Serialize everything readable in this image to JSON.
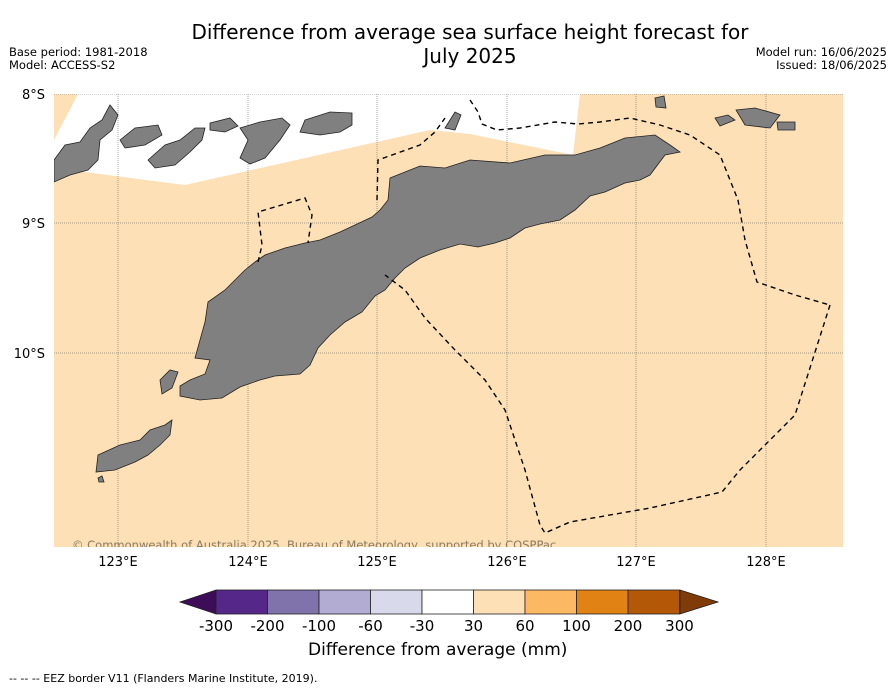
{
  "title_line1": "Difference from average sea surface height forecast for",
  "title_line2": "July 2025",
  "meta_left": [
    "Base period: 1981-2018",
    "Model: ACCESS-S2"
  ],
  "meta_right": [
    "Model run: 16/06/2025",
    "Issued: 18/06/2025"
  ],
  "map": {
    "lat_labels": [
      "8°S",
      "9°S",
      "10°S"
    ],
    "lon_labels": [
      "123°E",
      "124°E",
      "125°E",
      "126°E",
      "127°E",
      "128°E"
    ],
    "copyright": "© Commonwealth of Australia 2025, Bureau of Meteorology, supported by COSPPac",
    "background_anomaly_class": "30 to 60",
    "colors": {
      "land": "#808080",
      "ocean_anomaly": "#fde0b5",
      "no_data": "#ffffff"
    }
  },
  "colorbar": {
    "title": "Difference from average (mm)",
    "ticks": [
      "-300",
      "-200",
      "-100",
      "-60",
      "-30",
      "30",
      "60",
      "100",
      "200",
      "300"
    ],
    "colors": [
      "#3d0e57",
      "#542788",
      "#8073ac",
      "#b2abd2",
      "#d8daeb",
      "#ffffff",
      "#fee0b6",
      "#fdb863",
      "#e08214",
      "#b35806",
      "#7f3b08"
    ]
  },
  "footnote": "--  --  -- EEZ border V11 (Flanders Marine Institute, 2019)."
}
